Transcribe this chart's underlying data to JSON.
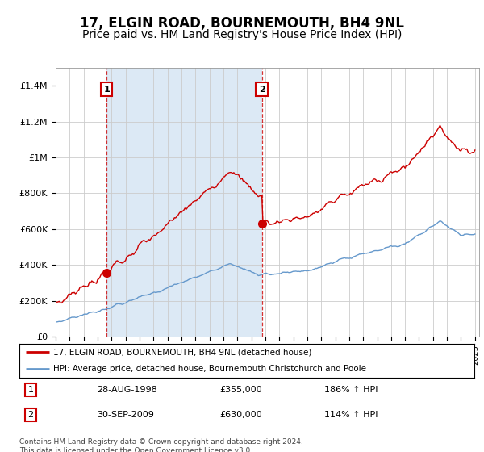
{
  "title": "17, ELGIN ROAD, BOURNEMOUTH, BH4 9NL",
  "subtitle": "Price paid vs. HM Land Registry's House Price Index (HPI)",
  "ylim": [
    0,
    1500000
  ],
  "yticks": [
    0,
    200000,
    400000,
    600000,
    800000,
    1000000,
    1200000,
    1400000
  ],
  "ytick_labels": [
    "£0",
    "£200K",
    "£400K",
    "£600K",
    "£800K",
    "£1M",
    "£1.2M",
    "£1.4M"
  ],
  "plot_bg_color": "#ffffff",
  "shade_color": "#dce9f5",
  "title_fontsize": 12,
  "subtitle_fontsize": 10,
  "transactions": [
    {
      "date_num": 1998.65,
      "price": 355000,
      "label": "1"
    },
    {
      "date_num": 2009.75,
      "price": 630000,
      "label": "2"
    }
  ],
  "transaction_date_labels": [
    "28-AUG-1998",
    "30-SEP-2009"
  ],
  "transaction_prices": [
    "£355,000",
    "£630,000"
  ],
  "transaction_hpi": [
    "186% ↑ HPI",
    "114% ↑ HPI"
  ],
  "legend_line1": "17, ELGIN ROAD, BOURNEMOUTH, BH4 9NL (detached house)",
  "legend_line2": "HPI: Average price, detached house, Bournemouth Christchurch and Poole",
  "footnote": "Contains HM Land Registry data © Crown copyright and database right 2024.\nThis data is licensed under the Open Government Licence v3.0.",
  "red_color": "#cc0000",
  "blue_color": "#6699cc",
  "grid_color": "#cccccc"
}
